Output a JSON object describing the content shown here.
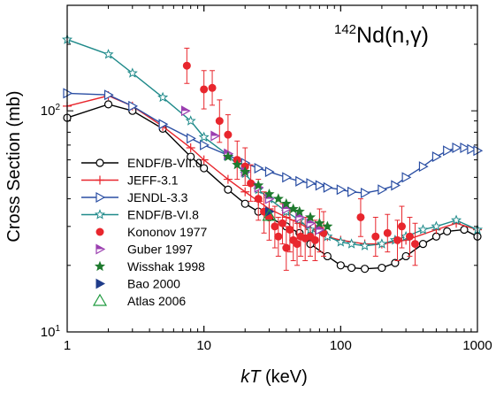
{
  "chart_data": {
    "type": "line",
    "title_sup": "142",
    "title_main": "Nd(n,γ)",
    "xlabel_italic": "kT",
    "xlabel_unit": " (keV)",
    "ylabel": "Cross Section (mb)",
    "xscale": "log",
    "yscale": "log",
    "xlim": [
      1,
      1000
    ],
    "ylim": [
      10,
      300
    ],
    "x_ticks": [
      {
        "value": 1,
        "label": "1"
      },
      {
        "value": 10,
        "label": "10"
      },
      {
        "value": 100,
        "label": "100"
      },
      {
        "value": 1000,
        "label": "1000"
      }
    ],
    "y_ticks": [
      {
        "value": 10,
        "base": "10",
        "exp": "1"
      },
      {
        "value": 100,
        "base": "10",
        "exp": "2"
      }
    ],
    "grid": false,
    "legend_position": "center-left",
    "series": [
      {
        "name": "ENDF/B-VII.0",
        "kind": "line",
        "color": "#000000",
        "marker": "open-circle",
        "x": [
          1,
          2,
          3,
          5,
          8,
          10,
          15,
          20,
          25,
          30,
          40,
          50,
          60,
          80,
          100,
          120,
          150,
          200,
          250,
          300,
          400,
          500,
          600,
          800,
          1000
        ],
        "y": [
          93,
          107,
          100,
          83,
          62,
          55,
          44,
          38,
          35,
          33,
          30,
          28,
          25,
          22,
          20,
          19.5,
          19.3,
          19.5,
          20.5,
          22,
          25,
          27,
          28.5,
          29,
          27
        ]
      },
      {
        "name": "JEFF-3.1",
        "kind": "line",
        "color": "#e8262d",
        "marker": "plus",
        "x": [
          1,
          2,
          3,
          5,
          8,
          10,
          15,
          20,
          25,
          30,
          40,
          50,
          60,
          80,
          100,
          150,
          200,
          300,
          500,
          700,
          1000
        ],
        "y": [
          105,
          117,
          105,
          85,
          68,
          60,
          49,
          43,
          39,
          36,
          33,
          31,
          29,
          27,
          26,
          25,
          25,
          26,
          29,
          31,
          29
        ]
      },
      {
        "name": "JENDL-3.3",
        "kind": "line",
        "color": "#2a4ea3",
        "marker": "open-triangle-right",
        "x": [
          1,
          2,
          3,
          5,
          8,
          10,
          15,
          20,
          25,
          30,
          40,
          50,
          60,
          70,
          80,
          100,
          120,
          150,
          200,
          250,
          300,
          400,
          500,
          600,
          700,
          800,
          900,
          1000
        ],
        "y": [
          120,
          118,
          105,
          87,
          75,
          70,
          63,
          58,
          55,
          53,
          50,
          48,
          47,
          46,
          45,
          44,
          43,
          42.5,
          44,
          46,
          50,
          56,
          62,
          66,
          68,
          68,
          67,
          66
        ]
      },
      {
        "name": "ENDF/B-VI.8",
        "kind": "line",
        "color": "#1f8a8a",
        "marker": "open-star",
        "x": [
          1,
          2,
          3,
          5,
          8,
          10,
          15,
          20,
          25,
          30,
          40,
          50,
          60,
          80,
          100,
          120,
          150,
          200,
          250,
          300,
          400,
          500,
          700,
          1000
        ],
        "y": [
          210,
          180,
          148,
          115,
          90,
          76,
          63,
          52,
          44,
          40,
          35,
          32,
          29,
          27,
          25.5,
          25,
          24.5,
          25,
          26,
          27,
          29,
          30,
          32,
          29
        ]
      },
      {
        "name": "Kononov 1977",
        "kind": "points",
        "color": "#e8262d",
        "marker": "filled-circle",
        "points": [
          {
            "x": 7.5,
            "y": 160,
            "lo": 133,
            "hi": 192
          },
          {
            "x": 10,
            "y": 125,
            "lo": 102,
            "hi": 152
          },
          {
            "x": 11.5,
            "y": 127,
            "lo": 106,
            "hi": 152
          },
          {
            "x": 13,
            "y": 90,
            "lo": 72,
            "hi": 112
          },
          {
            "x": 15,
            "y": 78,
            "lo": 62,
            "hi": 96
          },
          {
            "x": 17.5,
            "y": 60,
            "lo": 49,
            "hi": 73
          },
          {
            "x": 20,
            "y": 56,
            "lo": 46,
            "hi": 68
          },
          {
            "x": 22,
            "y": 47,
            "lo": 39,
            "hi": 57
          },
          {
            "x": 25,
            "y": 40,
            "lo": 32,
            "hi": 49
          },
          {
            "x": 27.5,
            "y": 35,
            "lo": 28,
            "hi": 43
          },
          {
            "x": 30,
            "y": 33,
            "lo": 26,
            "hi": 41
          },
          {
            "x": 33,
            "y": 30,
            "lo": 24,
            "hi": 37
          },
          {
            "x": 35,
            "y": 27,
            "lo": 22,
            "hi": 33
          },
          {
            "x": 37.5,
            "y": 31,
            "lo": 25,
            "hi": 38
          },
          {
            "x": 40,
            "y": 24,
            "lo": 19,
            "hi": 30
          },
          {
            "x": 42.5,
            "y": 29,
            "lo": 23,
            "hi": 36
          },
          {
            "x": 45,
            "y": 26,
            "lo": 21,
            "hi": 32
          },
          {
            "x": 48,
            "y": 25,
            "lo": 20,
            "hi": 31
          },
          {
            "x": 51,
            "y": 27,
            "lo": 22,
            "hi": 33
          },
          {
            "x": 55,
            "y": 26.5,
            "lo": 21,
            "hi": 33
          },
          {
            "x": 60,
            "y": 27,
            "lo": 22,
            "hi": 33
          },
          {
            "x": 65,
            "y": 26,
            "lo": 21,
            "hi": 32
          },
          {
            "x": 70,
            "y": 29,
            "lo": 23,
            "hi": 36
          },
          {
            "x": 75,
            "y": 28,
            "lo": 22,
            "hi": 35
          },
          {
            "x": 140,
            "y": 33,
            "lo": 27,
            "hi": 40
          },
          {
            "x": 180,
            "y": 27,
            "lo": 22,
            "hi": 33
          },
          {
            "x": 220,
            "y": 28,
            "lo": 23,
            "hi": 34
          },
          {
            "x": 260,
            "y": 26,
            "lo": 21,
            "hi": 32
          },
          {
            "x": 280,
            "y": 30,
            "lo": 24,
            "hi": 37
          },
          {
            "x": 320,
            "y": 27,
            "lo": 22,
            "hi": 33
          },
          {
            "x": 350,
            "y": 25,
            "lo": 20,
            "hi": 31
          }
        ]
      },
      {
        "name": "Guber 1997",
        "kind": "points",
        "color": "#9b3fb0",
        "marker": "right-triangle-half",
        "points": [
          {
            "x": 7.3,
            "y": 100
          },
          {
            "x": 12,
            "y": 77
          },
          {
            "x": 15,
            "y": 64
          },
          {
            "x": 20,
            "y": 53
          },
          {
            "x": 25,
            "y": 45
          },
          {
            "x": 30,
            "y": 40
          },
          {
            "x": 40,
            "y": 36
          },
          {
            "x": 50,
            "y": 33
          },
          {
            "x": 60,
            "y": 31
          },
          {
            "x": 70,
            "y": 29
          }
        ]
      },
      {
        "name": "Wisshak 1998",
        "kind": "points",
        "color": "#1e7a2e",
        "marker": "filled-star",
        "points": [
          {
            "x": 15,
            "y": 62
          },
          {
            "x": 17.5,
            "y": 57
          },
          {
            "x": 20,
            "y": 53
          },
          {
            "x": 25,
            "y": 46
          },
          {
            "x": 30,
            "y": 42
          },
          {
            "x": 35,
            "y": 40
          },
          {
            "x": 40,
            "y": 38
          },
          {
            "x": 45,
            "y": 36
          },
          {
            "x": 50,
            "y": 35
          },
          {
            "x": 60,
            "y": 33
          },
          {
            "x": 70,
            "y": 31
          },
          {
            "x": 80,
            "y": 30
          }
        ]
      },
      {
        "name": "Bao 2000",
        "kind": "points",
        "color": "#1f3c8a",
        "marker": "filled-triangle-right",
        "points": [
          {
            "x": 30,
            "y": 35
          }
        ]
      },
      {
        "name": "Atlas 2006",
        "kind": "points",
        "color": "#1e9a3e",
        "marker": "open-triangle-up",
        "points": [
          {
            "x": 30,
            "y": 33.5
          }
        ]
      }
    ]
  }
}
